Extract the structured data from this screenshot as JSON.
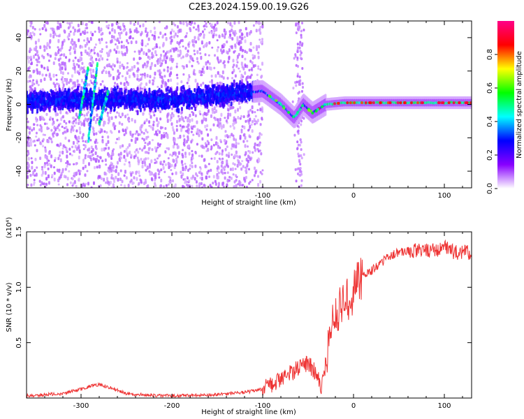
{
  "title": "C2E3.2024.159.00.19.G26",
  "chart_data": [
    {
      "type": "heatmap",
      "xlabel": "Height of straight line (km)",
      "ylabel": "Frequency (Hz)",
      "xlim": [
        -360,
        130
      ],
      "ylim": [
        -50,
        50
      ],
      "xticks": [
        -300,
        -200,
        -100,
        0,
        100
      ],
      "xtick_labels": [
        "-300",
        "-200",
        "-100",
        "0",
        "100"
      ],
      "yticks": [
        -40,
        -20,
        0,
        20,
        40
      ],
      "ytick_labels": [
        "-40",
        "-20",
        "0",
        "20",
        "40"
      ],
      "grid": false,
      "colorbar": {
        "label": "Normalized spectral amplitude",
        "range": [
          0,
          1
        ],
        "ticks": [
          0.0,
          0.2,
          0.4,
          0.6,
          0.8
        ],
        "tick_labels": [
          "0.0",
          "0.2",
          "0.4",
          "0.6",
          "0.8"
        ],
        "colormap": [
          "#ffffff",
          "#8800ff",
          "#0000ff",
          "#00ffff",
          "#00ff00",
          "#ffff00",
          "#ff0000",
          "#ff0088"
        ]
      },
      "ridge": {
        "x": [
          -360,
          -300,
          -200,
          -120,
          -100,
          -80,
          -65,
          -55,
          -45,
          -30,
          -10,
          0,
          50,
          100,
          130
        ],
        "frequency": [
          2,
          3,
          3,
          7,
          8,
          0,
          -8,
          0,
          -5,
          0,
          1,
          1,
          1,
          1,
          1
        ]
      }
    },
    {
      "type": "line",
      "xlabel": "Height of straight line (km)",
      "ylabel": "SNR (10 * v/v)",
      "y_multiplier": "(x10⁴)",
      "xlim": [
        -360,
        130
      ],
      "ylim": [
        0,
        1.5
      ],
      "xticks": [
        -300,
        -200,
        -100,
        0,
        100
      ],
      "xtick_labels": [
        "-300",
        "-200",
        "-100",
        "0",
        "100"
      ],
      "yticks": [
        0.5,
        1.0,
        1.5
      ],
      "ytick_labels": [
        "0.5",
        "1.0",
        "1.5"
      ],
      "grid": false,
      "series": [
        {
          "color": "#ee3333",
          "x": [
            -360,
            -340,
            -320,
            -300,
            -290,
            -280,
            -270,
            -260,
            -250,
            -230,
            -200,
            -150,
            -120,
            -100,
            -90,
            -80,
            -70,
            -60,
            -50,
            -40,
            -35,
            -30,
            -25,
            -20,
            -15,
            -10,
            -5,
            0,
            5,
            10,
            20,
            30,
            40,
            50,
            70,
            90,
            100,
            110,
            130
          ],
          "y": [
            0.02,
            0.03,
            0.04,
            0.08,
            0.11,
            0.12,
            0.1,
            0.07,
            0.04,
            0.03,
            0.02,
            0.03,
            0.05,
            0.08,
            0.12,
            0.18,
            0.22,
            0.28,
            0.32,
            0.2,
            0.1,
            0.35,
            0.6,
            0.75,
            0.8,
            0.85,
            0.9,
            0.95,
            1.05,
            1.1,
            1.15,
            1.22,
            1.28,
            1.32,
            1.33,
            1.34,
            1.36,
            1.32,
            1.31
          ]
        }
      ]
    }
  ]
}
